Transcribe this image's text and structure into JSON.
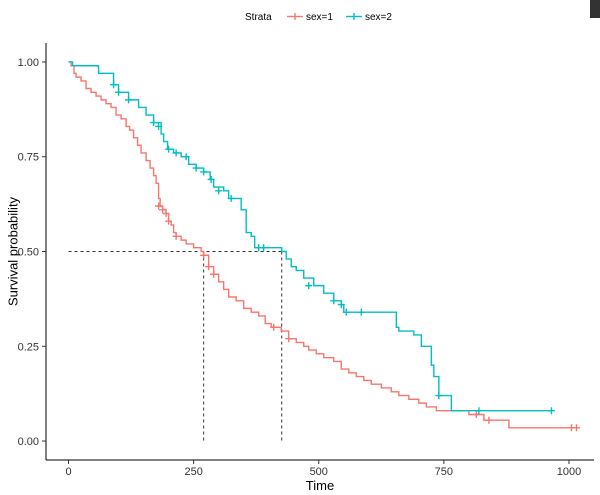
{
  "chart_data": {
    "type": "line",
    "subtype": "kaplan-meier",
    "xlabel": "Time",
    "ylabel": "Survival probability",
    "xlim": [
      -45,
      1050
    ],
    "ylim": [
      -0.05,
      1.05
    ],
    "xticks": [
      0,
      250,
      500,
      750,
      1000
    ],
    "yticks": [
      0.0,
      0.25,
      0.5,
      0.75,
      1.0
    ],
    "xtick_labels": [
      "0",
      "250",
      "500",
      "750",
      "1000"
    ],
    "ytick_labels": [
      "0.00",
      "0.25",
      "0.50",
      "0.75",
      "1.00"
    ],
    "grid": false,
    "legend": {
      "title": "Strata",
      "placement": "top"
    },
    "median_line": {
      "y": 0.5,
      "x_values": [
        270,
        426
      ]
    },
    "series": [
      {
        "name": "sex=1",
        "color": "#F8766D",
        "steps": [
          [
            0,
            1.0
          ],
          [
            5,
            0.99
          ],
          [
            11,
            0.97
          ],
          [
            15,
            0.96
          ],
          [
            25,
            0.95
          ],
          [
            35,
            0.93
          ],
          [
            45,
            0.92
          ],
          [
            55,
            0.91
          ],
          [
            65,
            0.9
          ],
          [
            75,
            0.89
          ],
          [
            85,
            0.88
          ],
          [
            95,
            0.86
          ],
          [
            105,
            0.85
          ],
          [
            115,
            0.83
          ],
          [
            122,
            0.82
          ],
          [
            130,
            0.8
          ],
          [
            138,
            0.78
          ],
          [
            145,
            0.76
          ],
          [
            155,
            0.74
          ],
          [
            163,
            0.72
          ],
          [
            170,
            0.7
          ],
          [
            175,
            0.68
          ],
          [
            180,
            0.64
          ],
          [
            183,
            0.62
          ],
          [
            188,
            0.61
          ],
          [
            195,
            0.6
          ],
          [
            200,
            0.58
          ],
          [
            205,
            0.57
          ],
          [
            210,
            0.55
          ],
          [
            215,
            0.54
          ],
          [
            225,
            0.53
          ],
          [
            235,
            0.52
          ],
          [
            250,
            0.51
          ],
          [
            265,
            0.5
          ],
          [
            270,
            0.49
          ],
          [
            280,
            0.46
          ],
          [
            290,
            0.44
          ],
          [
            300,
            0.42
          ],
          [
            310,
            0.4
          ],
          [
            320,
            0.38
          ],
          [
            335,
            0.37
          ],
          [
            350,
            0.35
          ],
          [
            365,
            0.34
          ],
          [
            380,
            0.33
          ],
          [
            393,
            0.31
          ],
          [
            405,
            0.3
          ],
          [
            425,
            0.29
          ],
          [
            440,
            0.27
          ],
          [
            455,
            0.26
          ],
          [
            470,
            0.25
          ],
          [
            480,
            0.24
          ],
          [
            495,
            0.23
          ],
          [
            510,
            0.22
          ],
          [
            530,
            0.21
          ],
          [
            545,
            0.19
          ],
          [
            560,
            0.18
          ],
          [
            575,
            0.17
          ],
          [
            590,
            0.16
          ],
          [
            605,
            0.15
          ],
          [
            625,
            0.14
          ],
          [
            645,
            0.13
          ],
          [
            660,
            0.12
          ],
          [
            680,
            0.11
          ],
          [
            700,
            0.1
          ],
          [
            715,
            0.09
          ],
          [
            735,
            0.08
          ],
          [
            800,
            0.07
          ],
          [
            830,
            0.055
          ],
          [
            880,
            0.035
          ],
          [
            1010,
            0.035
          ],
          [
            1020,
            0.035
          ]
        ],
        "censored": [
          [
            180,
            0.62
          ],
          [
            188,
            0.61
          ],
          [
            195,
            0.6
          ],
          [
            200,
            0.58
          ],
          [
            215,
            0.54
          ],
          [
            270,
            0.49
          ],
          [
            280,
            0.46
          ],
          [
            290,
            0.44
          ],
          [
            410,
            0.3
          ],
          [
            440,
            0.27
          ],
          [
            815,
            0.07
          ],
          [
            840,
            0.055
          ],
          [
            1005,
            0.035
          ],
          [
            1015,
            0.035
          ]
        ]
      },
      {
        "name": "sex=2",
        "color": "#00BFC4",
        "steps": [
          [
            0,
            1.0
          ],
          [
            8,
            0.99
          ],
          [
            60,
            0.97
          ],
          [
            90,
            0.94
          ],
          [
            100,
            0.92
          ],
          [
            120,
            0.9
          ],
          [
            140,
            0.88
          ],
          [
            155,
            0.86
          ],
          [
            170,
            0.84
          ],
          [
            185,
            0.81
          ],
          [
            190,
            0.79
          ],
          [
            198,
            0.77
          ],
          [
            210,
            0.76
          ],
          [
            225,
            0.75
          ],
          [
            240,
            0.73
          ],
          [
            255,
            0.72
          ],
          [
            270,
            0.71
          ],
          [
            283,
            0.69
          ],
          [
            290,
            0.67
          ],
          [
            310,
            0.66
          ],
          [
            320,
            0.64
          ],
          [
            345,
            0.61
          ],
          [
            355,
            0.55
          ],
          [
            365,
            0.54
          ],
          [
            372,
            0.51
          ],
          [
            380,
            0.51
          ],
          [
            426,
            0.5
          ],
          [
            435,
            0.48
          ],
          [
            445,
            0.46
          ],
          [
            455,
            0.45
          ],
          [
            470,
            0.43
          ],
          [
            490,
            0.41
          ],
          [
            510,
            0.39
          ],
          [
            530,
            0.37
          ],
          [
            545,
            0.36
          ],
          [
            550,
            0.34
          ],
          [
            575,
            0.34
          ],
          [
            640,
            0.34
          ],
          [
            655,
            0.3
          ],
          [
            660,
            0.29
          ],
          [
            690,
            0.28
          ],
          [
            705,
            0.25
          ],
          [
            725,
            0.2
          ],
          [
            730,
            0.17
          ],
          [
            740,
            0.12
          ],
          [
            765,
            0.08
          ],
          [
            965,
            0.08
          ]
        ],
        "censored": [
          [
            90,
            0.94
          ],
          [
            100,
            0.92
          ],
          [
            120,
            0.9
          ],
          [
            170,
            0.84
          ],
          [
            180,
            0.83
          ],
          [
            200,
            0.77
          ],
          [
            215,
            0.76
          ],
          [
            235,
            0.75
          ],
          [
            255,
            0.72
          ],
          [
            270,
            0.71
          ],
          [
            285,
            0.69
          ],
          [
            300,
            0.66
          ],
          [
            325,
            0.64
          ],
          [
            380,
            0.51
          ],
          [
            390,
            0.51
          ],
          [
            480,
            0.41
          ],
          [
            530,
            0.37
          ],
          [
            545,
            0.36
          ],
          [
            555,
            0.34
          ],
          [
            585,
            0.34
          ],
          [
            740,
            0.12
          ],
          [
            820,
            0.08
          ],
          [
            965,
            0.08
          ]
        ]
      }
    ]
  }
}
